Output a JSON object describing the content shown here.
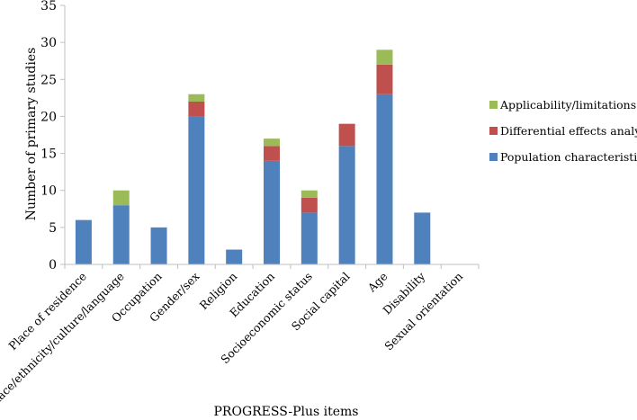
{
  "chart_data": {
    "type": "bar",
    "stacked": true,
    "categories": [
      "Place of residence",
      "Race/ethnicity/culture/language",
      "Occupation",
      "Gender/sex",
      "Religion",
      "Education",
      "Socioeconomic status",
      "Social capital",
      "Age",
      "Disability",
      "Sexual orientation"
    ],
    "series": [
      {
        "name": "Population characteristics",
        "color": "#4F81BD",
        "values": [
          6,
          8,
          5,
          20,
          2,
          14,
          7,
          16,
          23,
          7,
          0
        ]
      },
      {
        "name": "Differential effects analysis",
        "color": "#C0504D",
        "values": [
          0,
          0,
          0,
          2,
          0,
          2,
          2,
          3,
          4,
          0,
          0
        ]
      },
      {
        "name": "Applicability/limitations",
        "color": "#9BBB59",
        "values": [
          0,
          2,
          0,
          1,
          0,
          1,
          1,
          0,
          2,
          0,
          0
        ]
      }
    ],
    "ylim": [
      0,
      35
    ],
    "yticks": [
      "0",
      "5",
      "10",
      "15",
      "20",
      "25",
      "30",
      "35"
    ],
    "xlabel": "PROGRESS-Plus items",
    "ylabel": "Number of primary studies",
    "legend_position": "right",
    "grid": false
  }
}
